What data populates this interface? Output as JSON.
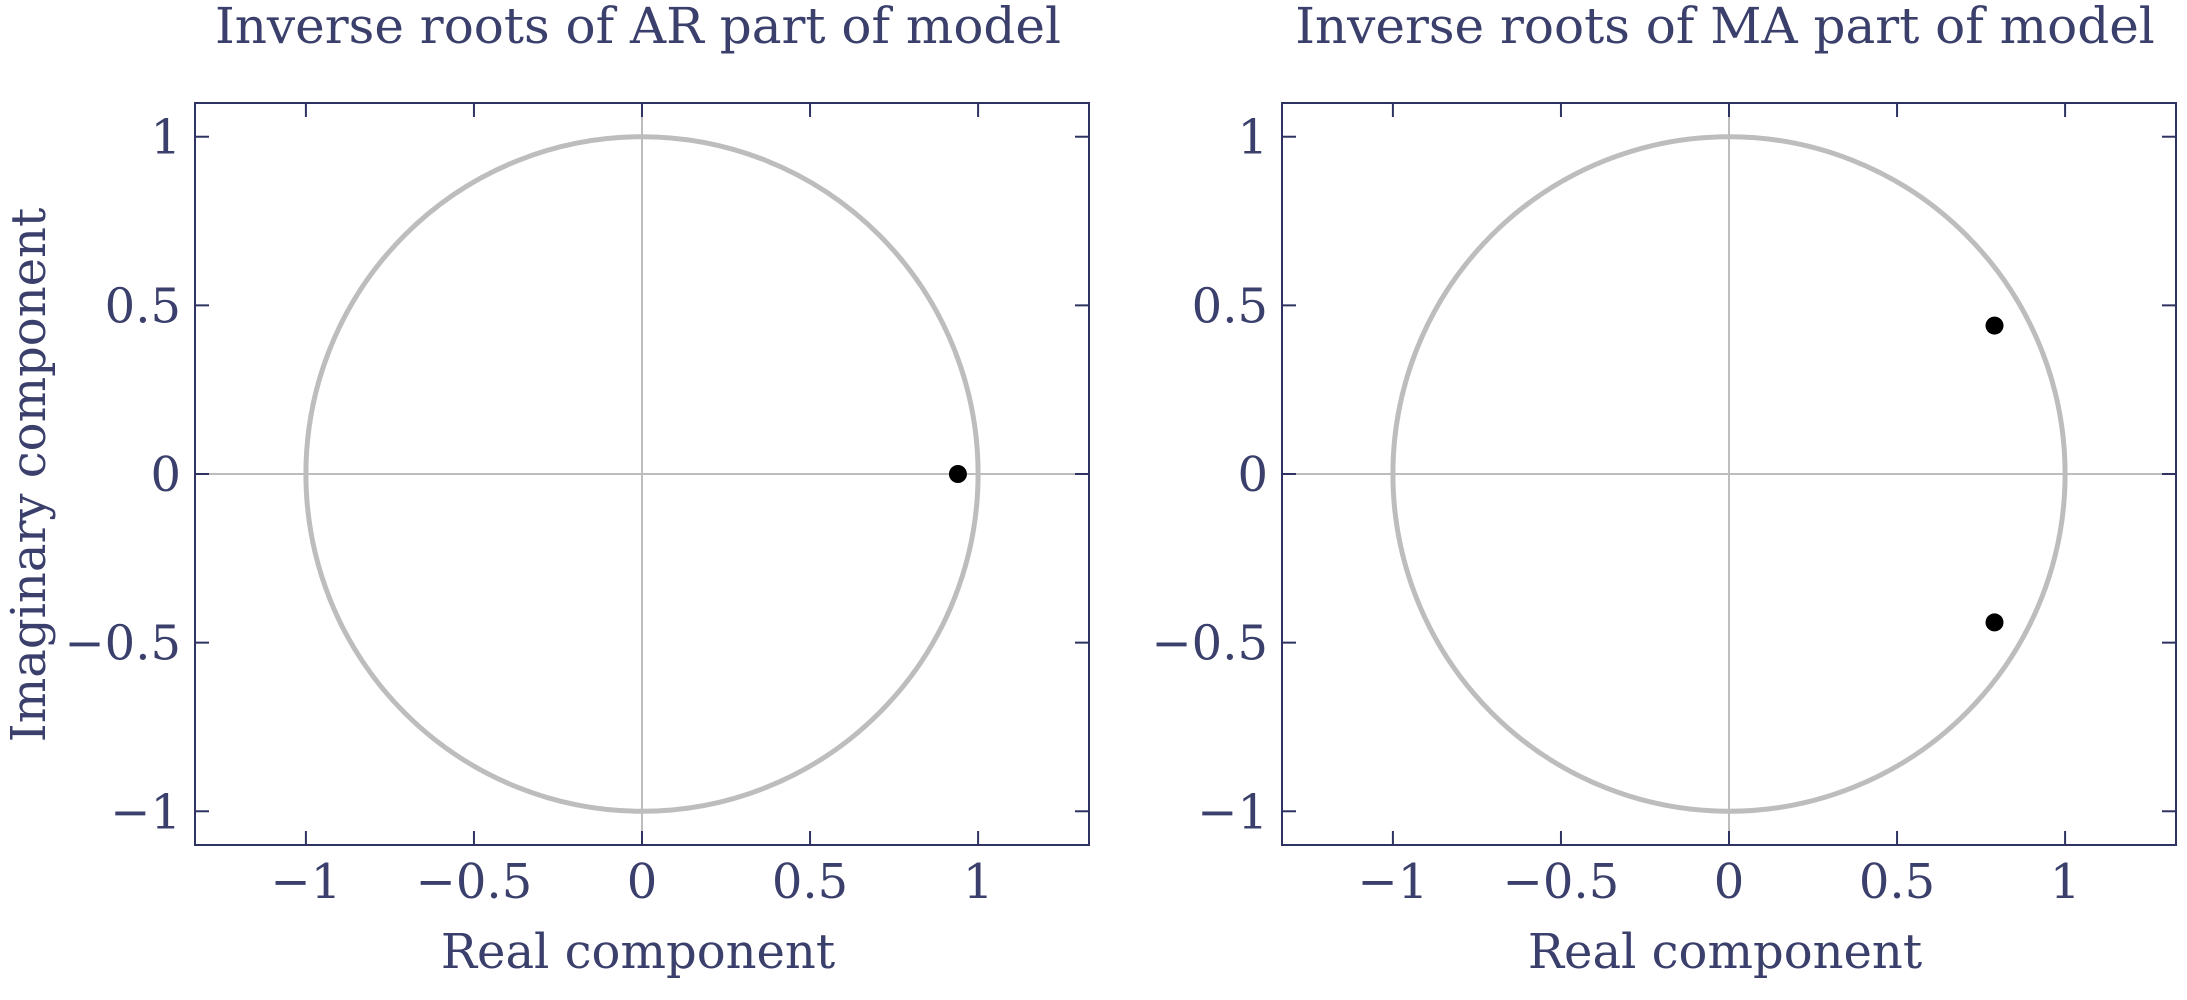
{
  "colors": {
    "text": "#3a3f6b",
    "axis": "#2e3361",
    "grid": "#bdbdbd",
    "circle": "#bdbdbd",
    "point": "#000000"
  },
  "chart_data": [
    {
      "type": "scatter",
      "title": "Inverse roots of AR part of model",
      "xlabel": "Real component",
      "ylabel": "Imaginary component",
      "xlim": [
        -1.33,
        1.33
      ],
      "ylim": [
        -1.1,
        1.1
      ],
      "x_ticks": [
        -1,
        -0.5,
        0,
        0.5,
        1
      ],
      "x_tick_labels": [
        "−1",
        "−0.5",
        "0",
        "0.5",
        "1"
      ],
      "y_ticks": [
        1,
        0.5,
        0,
        -0.5,
        -1
      ],
      "y_tick_labels": [
        "1",
        "0.5",
        "0",
        "−0.5",
        "−1"
      ],
      "unit_circle": true,
      "reference_lines": "x=0, y=0",
      "points": [
        {
          "x": 0.94,
          "y": 0
        }
      ]
    },
    {
      "type": "scatter",
      "title": "Inverse roots of MA part of model",
      "xlabel": "Real component",
      "ylabel": "",
      "xlim": [
        -1.33,
        1.33
      ],
      "ylim": [
        -1.1,
        1.1
      ],
      "x_ticks": [
        -1,
        -0.5,
        0,
        0.5,
        1
      ],
      "x_tick_labels": [
        "−1",
        "−0.5",
        "0",
        "0.5",
        "1"
      ],
      "y_ticks": [
        1,
        0.5,
        0,
        -0.5,
        -1
      ],
      "y_tick_labels": [
        "1",
        "0.5",
        "0",
        "−0.5",
        "−1"
      ],
      "unit_circle": true,
      "reference_lines": "x=0, y=0",
      "points": [
        {
          "x": 0.79,
          "y": 0.44
        },
        {
          "x": 0.79,
          "y": -0.44
        }
      ]
    }
  ]
}
